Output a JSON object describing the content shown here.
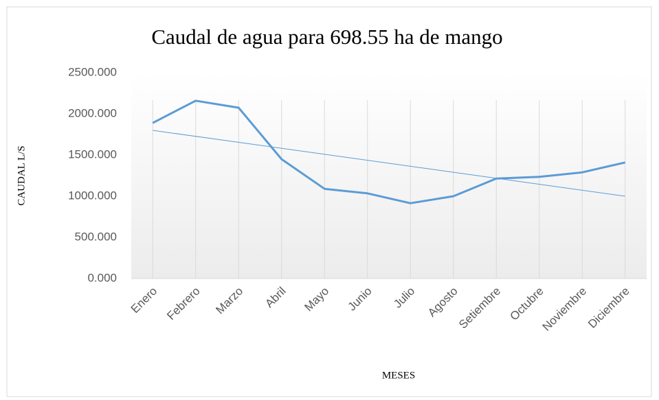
{
  "chart_data": {
    "type": "line",
    "title": "Caudal de agua para 698.55 ha de mango",
    "x_label": "MESES",
    "y_label": "CAUDAL L/S",
    "categories": [
      "Enero",
      "Febrero",
      "Marzo",
      "Abril",
      "Mayo",
      "Junio",
      "Julio",
      "Agosto",
      "Setiembre",
      "Octubre",
      "Noviembre",
      "Diciembre"
    ],
    "series": [
      {
        "color": "#5b9bd5",
        "values": [
          1890,
          2160,
          2075,
          1450,
          1090,
          1035,
          915,
          1000,
          1215,
          1235,
          1290,
          1410
        ]
      }
    ],
    "trend": [
      1800,
      1000
    ],
    "ylim": [
      0,
      2500
    ],
    "yticks": [
      {
        "value": 0,
        "label": "0.000"
      },
      {
        "value": 500,
        "label": "500.000"
      },
      {
        "value": 1000,
        "label": "1000.000"
      },
      {
        "value": 1500,
        "label": "1500.000"
      },
      {
        "value": 2000,
        "label": "2000.000"
      },
      {
        "value": 2500,
        "label": "2500.000"
      }
    ],
    "grid": true
  }
}
